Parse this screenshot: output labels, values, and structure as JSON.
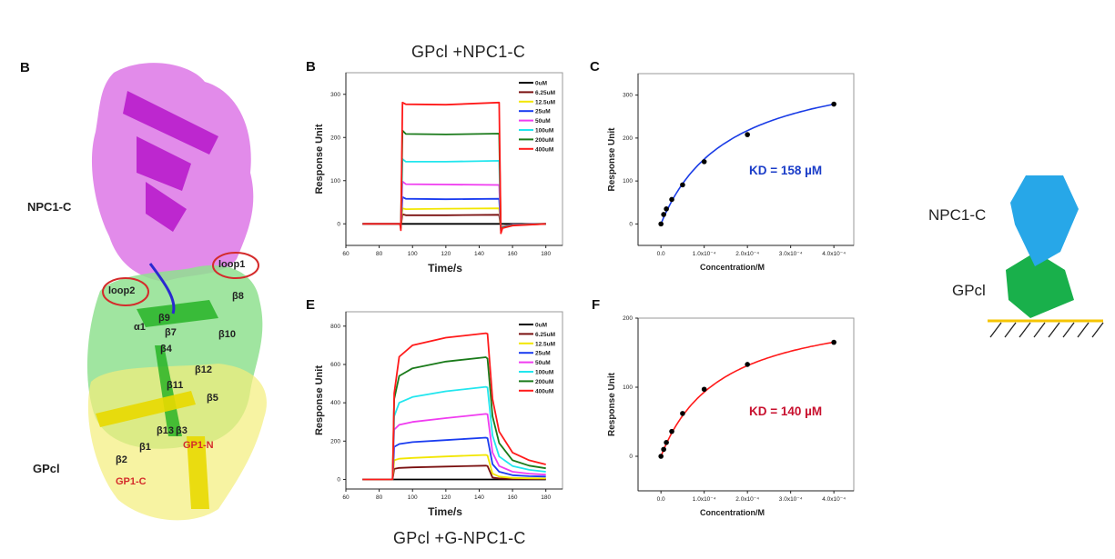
{
  "titles": {
    "top": "GPcl +NPC1-C",
    "bottom": "GPcl +G-NPC1-C"
  },
  "structure": {
    "panel_letter": "B",
    "labels": {
      "npc1c": "NPC1-C",
      "gpcl": "GPcl",
      "loop1": "loop1",
      "loop2": "loop2",
      "b8": "β8",
      "b9": "β9",
      "a1": "α1",
      "b7": "β7",
      "b10": "β10",
      "b4": "β4",
      "b12": "β12",
      "b11": "β11",
      "b5": "β5",
      "b13": "β13",
      "b3": "β3",
      "b1": "β1",
      "b2": "β2",
      "gp1n": "GP1-N",
      "gp1c": "GP1-C"
    },
    "colors": {
      "npc1c": "#d95fe0",
      "gpcl_core": "#7fdc7f",
      "gpcl_outer": "#f2ef6a",
      "loops": "#3a3ad6"
    }
  },
  "diagram": {
    "npc1c_label": "NPC1-C",
    "gpcl_label": "GPcl",
    "colors": {
      "npc1c": "#27a7e8",
      "gpcl": "#19b04b",
      "surface": "#f5c400"
    }
  },
  "chart_data": [
    {
      "id": "B",
      "panel_letter": "B",
      "type": "line",
      "xlabel": "Time/s",
      "ylabel": "Response Unit",
      "xlim": [
        60,
        190
      ],
      "ylim": [
        -50,
        350
      ],
      "xticks": [
        60,
        80,
        100,
        120,
        140,
        160,
        180
      ],
      "yticks": [
        0,
        100,
        200,
        300
      ],
      "legend": "top-right",
      "grid": false,
      "x": [
        70,
        92.5,
        93,
        94,
        96,
        120,
        152,
        153,
        154,
        160,
        180
      ],
      "series": [
        {
          "name": "0uM",
          "color": "#000000",
          "values": [
            0,
            0,
            0,
            0,
            0,
            0,
            0,
            0,
            0,
            0,
            0
          ]
        },
        {
          "name": "6.25uM",
          "color": "#7a1010",
          "values": [
            0,
            0,
            -5,
            22,
            20,
            20,
            21,
            -10,
            -6,
            -2,
            0
          ]
        },
        {
          "name": "12.5uM",
          "color": "#f2e600",
          "values": [
            0,
            0,
            -5,
            36,
            34,
            35,
            36,
            -10,
            -6,
            -2,
            0
          ]
        },
        {
          "name": "25uM",
          "color": "#1a3cf0",
          "values": [
            0,
            0,
            -6,
            62,
            58,
            57,
            58,
            -12,
            -7,
            -2,
            0
          ]
        },
        {
          "name": "50uM",
          "color": "#f03cf0",
          "values": [
            0,
            0,
            -6,
            98,
            92,
            91,
            90,
            -12,
            -7,
            -2,
            0
          ]
        },
        {
          "name": "100uM",
          "color": "#22e6ee",
          "values": [
            0,
            0,
            -8,
            150,
            144,
            144,
            146,
            -14,
            -8,
            -3,
            0
          ]
        },
        {
          "name": "200uM",
          "color": "#1a7a1a",
          "values": [
            0,
            0,
            -10,
            216,
            208,
            207,
            209,
            -16,
            -9,
            -3,
            0
          ]
        },
        {
          "name": "400uM",
          "color": "#ff1a1a",
          "values": [
            0,
            0,
            -15,
            281,
            277,
            276,
            281,
            -22,
            -10,
            -4,
            0
          ]
        }
      ]
    },
    {
      "id": "C",
      "panel_letter": "C",
      "type": "scatter",
      "xlabel": "Concentration/M",
      "ylabel": "Response Unit",
      "xlim": [
        -5.3e-05,
        0.000446
      ],
      "ylim": [
        -50,
        350
      ],
      "xticks": [
        0,
        0.0001,
        0.0002,
        0.0003,
        0.0004
      ],
      "xticklabels": [
        "0.0",
        "1.0x10⁻⁴",
        "2.0x10⁻⁴",
        "3.0x10⁻⁴",
        "4.0x10⁻⁴"
      ],
      "yticks": [
        0,
        100,
        200,
        300
      ],
      "grid": false,
      "x": [
        0,
        6.25e-06,
        1.25e-05,
        2.5e-05,
        5e-05,
        0.0001,
        0.0002,
        0.0004
      ],
      "values": [
        0,
        22,
        35,
        57,
        91,
        145,
        208,
        279
      ],
      "fit_color": "#1a3ce6",
      "annotation": "KD = 158 µM",
      "annotation_color": "#1a3cc8",
      "kd_uM": 158
    },
    {
      "id": "E",
      "panel_letter": "E",
      "type": "line",
      "xlabel": "Time/s",
      "ylabel": "Response Unit",
      "xlim": [
        60,
        190
      ],
      "ylim": [
        -50,
        875
      ],
      "xticks": [
        60,
        80,
        100,
        120,
        140,
        160,
        180
      ],
      "yticks": [
        0,
        200,
        400,
        600,
        800
      ],
      "legend": "top-right",
      "grid": false,
      "x": [
        70,
        88,
        89,
        92,
        100,
        120,
        144,
        145,
        148,
        152,
        160,
        170,
        180
      ],
      "series": [
        {
          "name": "0uM",
          "color": "#000000",
          "values": [
            0,
            0,
            0,
            0,
            0,
            0,
            0,
            0,
            0,
            0,
            0,
            0,
            0
          ]
        },
        {
          "name": "6.25uM",
          "color": "#7a1010",
          "values": [
            0,
            0,
            55,
            60,
            63,
            67,
            72,
            70,
            10,
            5,
            3,
            2,
            2
          ]
        },
        {
          "name": "12.5uM",
          "color": "#f2e600",
          "values": [
            0,
            0,
            100,
            108,
            112,
            120,
            128,
            125,
            30,
            15,
            8,
            6,
            5
          ]
        },
        {
          "name": "25uM",
          "color": "#1a3cf0",
          "values": [
            0,
            0,
            170,
            185,
            195,
            205,
            218,
            215,
            80,
            40,
            22,
            17,
            15
          ]
        },
        {
          "name": "50uM",
          "color": "#f03cf0",
          "values": [
            0,
            0,
            260,
            285,
            300,
            320,
            342,
            340,
            140,
            70,
            40,
            30,
            25
          ]
        },
        {
          "name": "100uM",
          "color": "#22e6ee",
          "values": [
            0,
            0,
            330,
            400,
            430,
            460,
            483,
            480,
            230,
            120,
            70,
            50,
            40
          ]
        },
        {
          "name": "200uM",
          "color": "#1a7a1a",
          "values": [
            0,
            0,
            420,
            540,
            580,
            615,
            638,
            630,
            330,
            190,
            100,
            72,
            58
          ]
        },
        {
          "name": "400uM",
          "color": "#ff1a1a",
          "values": [
            0,
            0,
            450,
            640,
            700,
            740,
            763,
            760,
            420,
            250,
            140,
            100,
            78
          ]
        }
      ]
    },
    {
      "id": "F",
      "panel_letter": "F",
      "type": "scatter",
      "xlabel": "Concentration/M",
      "ylabel": "Response Unit",
      "xlim": [
        -5.3e-05,
        0.000446
      ],
      "ylim": [
        -50,
        200
      ],
      "xticks": [
        0,
        0.0001,
        0.0002,
        0.0003,
        0.0004
      ],
      "xticklabels": [
        "0.0",
        "1.0x10⁻⁴",
        "2.0x10⁻⁴",
        "3.0x10⁻⁴",
        "4.0x10⁻⁴"
      ],
      "yticks": [
        0,
        100,
        200
      ],
      "grid": false,
      "x": [
        0,
        6.25e-06,
        1.25e-05,
        2.5e-05,
        5e-05,
        0.0001,
        0.0002,
        0.0004
      ],
      "values": [
        0,
        10,
        20,
        36,
        62,
        97,
        133,
        165
      ],
      "fit_color": "#ff1a1a",
      "annotation": "KD = 140 µM",
      "annotation_color": "#c8102e",
      "kd_uM": 140
    }
  ]
}
